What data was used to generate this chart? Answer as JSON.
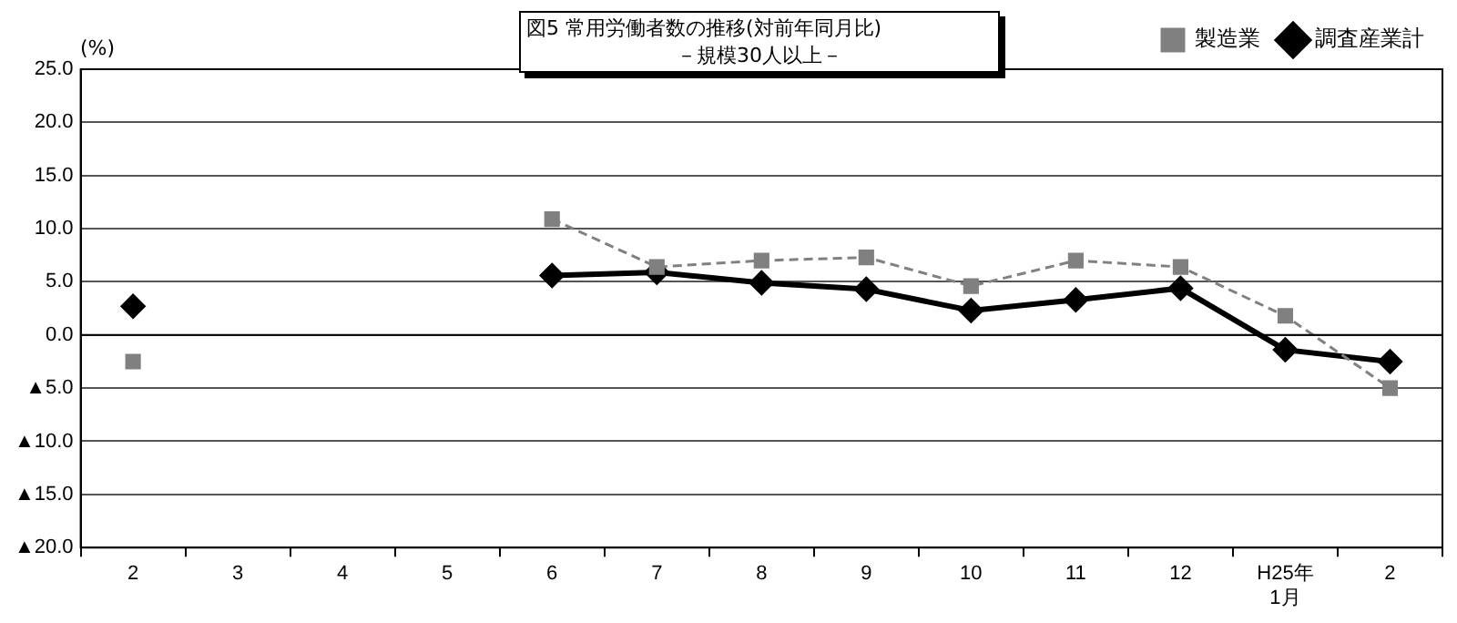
{
  "chart_data": {
    "type": "line",
    "title": "図5 常用労働者数の推移(対前年同月比)",
    "subtitle": "－規模30人以上－",
    "ylabel": "(%)",
    "categories": [
      "2",
      "3",
      "4",
      "5",
      "6",
      "7",
      "8",
      "9",
      "10",
      "11",
      "12",
      "H25年\n1月",
      "2"
    ],
    "series": [
      {
        "name": "調査産業計",
        "color": "#000000",
        "marker": "diamond",
        "line_style": "solid",
        "values": [
          2.7,
          null,
          null,
          null,
          5.6,
          5.9,
          4.9,
          4.3,
          2.3,
          3.3,
          4.4,
          -1.4,
          -2.5
        ]
      },
      {
        "name": "製造業",
        "color": "#808080",
        "marker": "square",
        "line_style": "dashed",
        "values": [
          -2.5,
          null,
          null,
          null,
          10.9,
          6.4,
          7.0,
          7.3,
          4.6,
          7.0,
          6.4,
          1.8,
          -5.0
        ]
      }
    ],
    "ylim": [
      -20,
      25
    ],
    "yticks": [
      {
        "value": 25,
        "label": "25.0"
      },
      {
        "value": 20,
        "label": "20.0"
      },
      {
        "value": 15,
        "label": "15.0"
      },
      {
        "value": 10,
        "label": "10.0"
      },
      {
        "value": 5,
        "label": "5.0"
      },
      {
        "value": 0,
        "label": "0.0"
      },
      {
        "value": -5,
        "label": "▲5.0"
      },
      {
        "value": -10,
        "label": "▲10.0"
      },
      {
        "value": -15,
        "label": "▲15.0"
      },
      {
        "value": -20,
        "label": "▲20.0"
      }
    ],
    "grid": "y",
    "legend": "top right"
  }
}
